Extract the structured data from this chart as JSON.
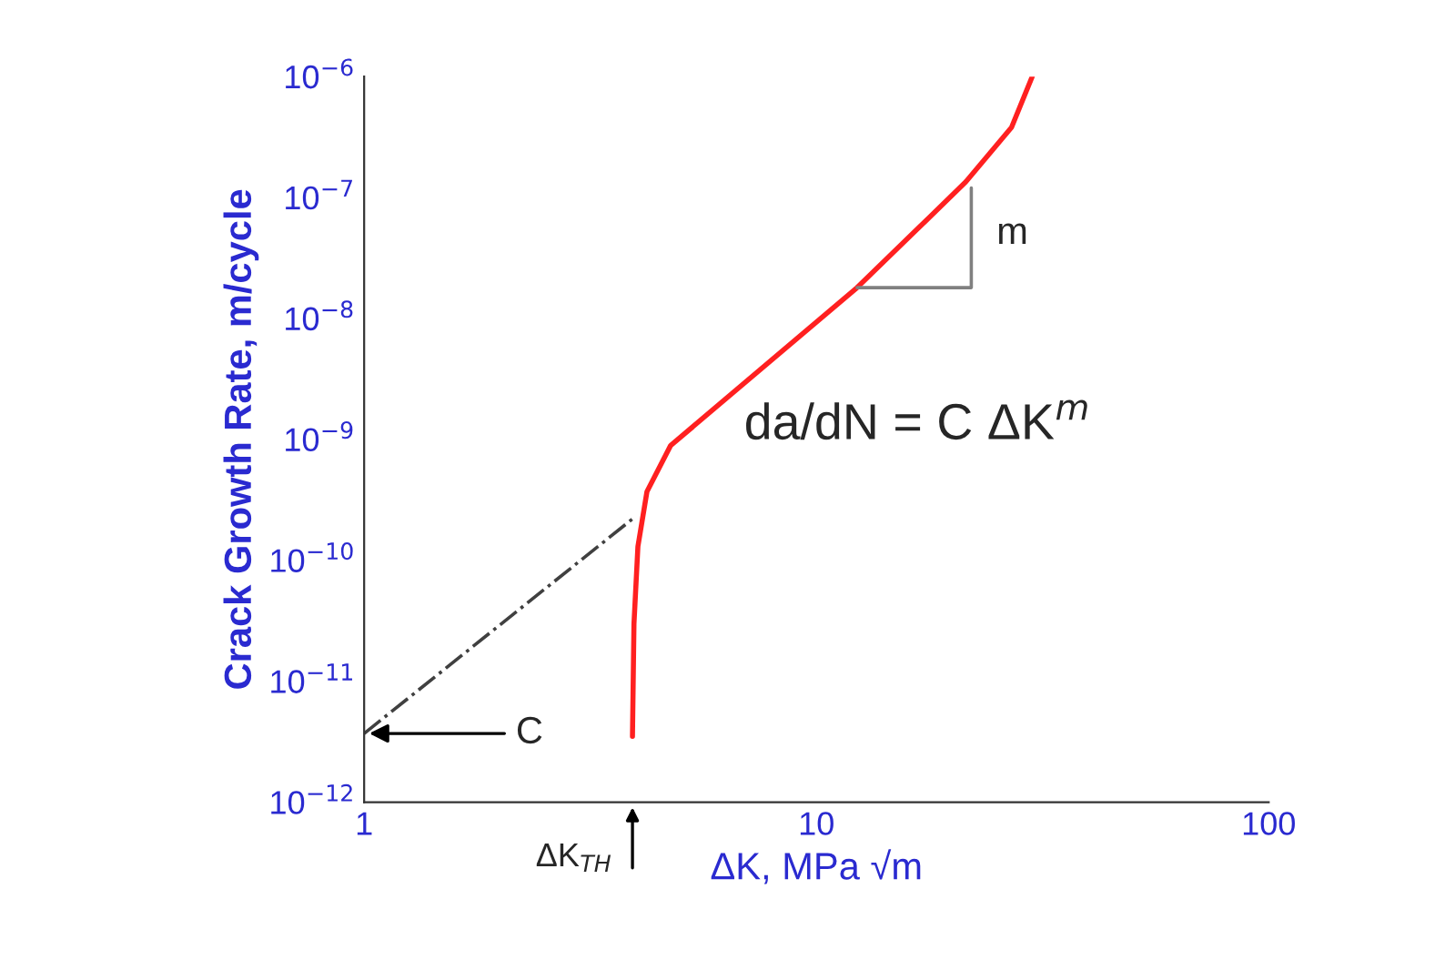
{
  "chart_data": {
    "type": "line",
    "xlabel": "ΔK, MPa √m",
    "ylabel": "Crack Growth Rate, m/cycle",
    "log": "xy",
    "xlim": [
      1,
      100
    ],
    "xticks": [
      1,
      10,
      100
    ],
    "ylim": [
      1e-12,
      1e-06
    ],
    "yticks": [
      {
        "value": 1e-12,
        "label": "10$^{−12}$"
      },
      {
        "value": 1e-11,
        "label": "10$^{−11}$"
      },
      {
        "value": 1e-10,
        "label": "10$^{−10}$"
      },
      {
        "value": 1e-09,
        "label": "10$^{−9}$"
      },
      {
        "value": 1e-08,
        "label": "10$^{−8}$"
      },
      {
        "value": 1e-07,
        "label": "10$^{−7}$"
      },
      {
        "value": 1e-06,
        "label": "10$^{−6}$"
      }
    ],
    "grid": false,
    "legend": false,
    "marker": "none",
    "series": [
      {
        "color": "#ff2020",
        "x": [
          3.92,
          3.95,
          4.03,
          4.22,
          4.76,
          12.3,
          21.4,
          27.0,
          30.0
        ],
        "values": [
          3.5e-12,
          3e-11,
          1.3e-10,
          3.7e-10,
          8.9e-10,
          1.8e-08,
          1.35e-07,
          3.8e-07,
          1e-06
        ]
      },
      {
        "color": "#404040",
        "line_style": "dashdot",
        "x": [
          1,
          3.92
        ],
        "values": [
          3.7e-12,
          2.2e-10
        ]
      },
      {
        "color": "#808080",
        "x": [
          12.3,
          22.0,
          22.0
        ],
        "values": [
          1.8e-08,
          1.8e-08,
          1.2e-07
        ]
      }
    ],
    "annotations": [
      "da/dN = C ΔK$^{m}$",
      {
        "text": "m",
        "x": 22.0,
        "y": 5e-08
      },
      {
        "text": "C",
        "x": 1,
        "y": 3.7e-12
      },
      "ΔK$_{TH}$"
    ]
  }
}
